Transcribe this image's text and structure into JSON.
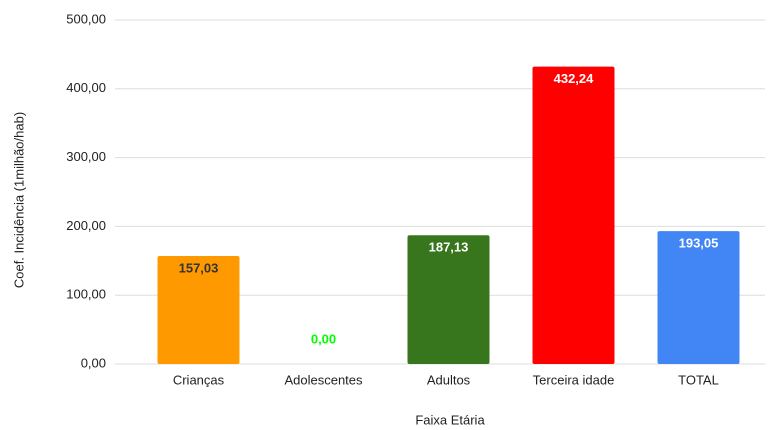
{
  "chart_data": {
    "type": "bar",
    "categories": [
      "Crianças",
      "Adolescentes",
      "Adultos",
      "Terceira idade",
      "TOTAL"
    ],
    "values": [
      157.03,
      0,
      187.13,
      432.24,
      193.05
    ],
    "value_labels": [
      "157,03",
      "0,00",
      "187,13",
      "432,24",
      "193,05"
    ],
    "colors": [
      "#ff9900",
      "#ff9900",
      "#38761d",
      "#ff0000",
      "#4285f4"
    ],
    "label_colors": [
      "#333333",
      "#00ff00",
      "#ffffff",
      "#ffffff",
      "#ffffff"
    ],
    "ylim": [
      0,
      500
    ],
    "yticks": [
      {
        "value": 0,
        "label": "0,00"
      },
      {
        "value": 100,
        "label": "100,00"
      },
      {
        "value": 200,
        "label": "200,00"
      },
      {
        "value": 300,
        "label": "300,00"
      },
      {
        "value": 400,
        "label": "400,00"
      },
      {
        "value": 500,
        "label": "500,00"
      }
    ],
    "grid": true,
    "xlabel": "Faixa Etária",
    "ylabel": "Coef. Incidência (1milhão/hab)"
  }
}
